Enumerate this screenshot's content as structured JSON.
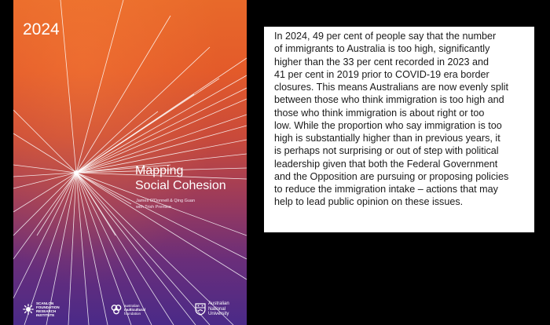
{
  "cover": {
    "year": "2024",
    "title_lines": [
      "Mapping",
      "Social Cohesion"
    ],
    "author_lines": [
      "James O'Donnell & Qing Guan",
      "with Trish Prentice"
    ],
    "logos": {
      "scanlon": [
        "SCANLON",
        "FOUNDATION",
        "RESEARCH",
        "INSTITUTE"
      ],
      "multicultural": [
        "australian",
        "multicultural",
        "foundation"
      ],
      "anu": [
        "Australian",
        "National",
        "University"
      ]
    },
    "colors": {
      "top": "#e8692a",
      "middle": "#c94a3a",
      "bottom": "#4a2a88",
      "rays": "#ffffff"
    }
  },
  "passage": {
    "lines": [
      "In 2024, 49 per cent of people say that the number",
      "of immigrants to Australia is too high, significantly",
      "higher than the 33 per cent recorded in 2023 and",
      "41 per cent in 2019 prior to COVID-19 era border",
      "closures. This means Australians are now evenly split",
      "between those who think immigration is too high and",
      "those who think immigration is about right or too",
      "low. While the proportion who say immigration is too",
      "high is substantially higher than in previous years, it",
      "is perhaps not surprising or out of step with political",
      "leadership given that both the Federal Government",
      "and the Opposition are pursuing or proposing policies",
      "to reduce the immigration intake – actions that may",
      "help to lead public opinion on these issues."
    ]
  }
}
